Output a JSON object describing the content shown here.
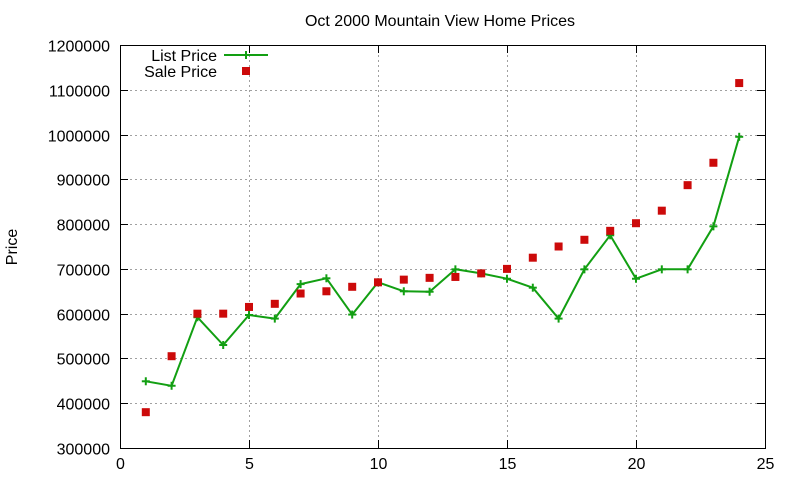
{
  "chart_data": {
    "type": "line",
    "title": "Oct 2000 Mountain View Home Prices",
    "xlabel": "",
    "ylabel": "Price",
    "xlim": [
      0,
      25
    ],
    "ylim": [
      300000,
      1200000
    ],
    "xticks": [
      0,
      5,
      10,
      15,
      20,
      25
    ],
    "yticks": [
      300000,
      400000,
      500000,
      600000,
      700000,
      800000,
      900000,
      1000000,
      1100000,
      1200000
    ],
    "grid": true,
    "legend_position": "top-left",
    "series": [
      {
        "name": "List Price",
        "style": "linespoints",
        "marker": "plus",
        "color": "#129f12",
        "x": [
          1,
          2,
          3,
          4,
          5,
          6,
          7,
          8,
          9,
          10,
          11,
          12,
          13,
          14,
          15,
          16,
          17,
          18,
          19,
          20,
          21,
          22,
          23,
          24
        ],
        "y": [
          449000,
          439000,
          592000,
          530000,
          597000,
          589000,
          666000,
          679000,
          598000,
          670000,
          650000,
          649000,
          699000,
          690000,
          678000,
          658000,
          589000,
          699000,
          775000,
          678000,
          699000,
          699000,
          795000,
          995000
        ]
      },
      {
        "name": "Sale Price",
        "style": "points",
        "marker": "square",
        "color": "#cc0a0a",
        "x": [
          1,
          2,
          3,
          4,
          5,
          6,
          7,
          8,
          9,
          10,
          11,
          12,
          13,
          14,
          15,
          16,
          17,
          18,
          19,
          20,
          21,
          22,
          23,
          24
        ],
        "y": [
          380000,
          505000,
          600000,
          600000,
          615000,
          622000,
          645000,
          650000,
          660000,
          670000,
          676000,
          680000,
          682000,
          690000,
          700000,
          725000,
          750000,
          765000,
          785000,
          802000,
          830000,
          887000,
          937000,
          1115000
        ]
      }
    ]
  }
}
